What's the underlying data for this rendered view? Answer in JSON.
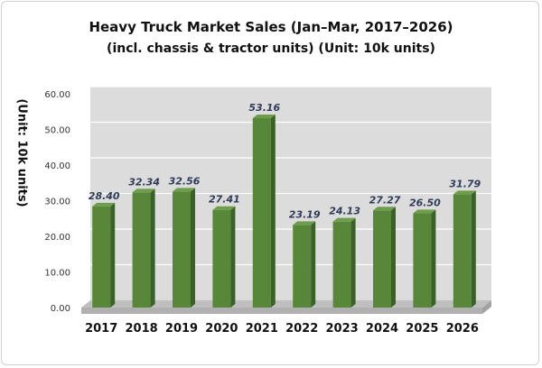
{
  "chart_data": {
    "type": "bar",
    "title": "Heavy Truck Market Sales (Jan–Mar, 2017–2026)",
    "subtitle": "(incl. chassis & tractor units) (Unit: 10k units)",
    "xlabel": "",
    "ylabel": "(Unit: 10k units)",
    "categories": [
      "2017",
      "2018",
      "2019",
      "2020",
      "2021",
      "2022",
      "2023",
      "2024",
      "2025",
      "2026"
    ],
    "values": [
      28.4,
      32.34,
      32.56,
      27.41,
      53.16,
      23.19,
      24.13,
      27.27,
      26.5,
      31.79
    ],
    "value_labels": [
      "28.40",
      "32.34",
      "32.56",
      "27.41",
      "53.16",
      "23.19",
      "24.13",
      "27.27",
      "26.50",
      "31.79"
    ],
    "ylim": [
      0,
      60
    ],
    "yticks": [
      "0.00",
      "10.00",
      "20.00",
      "30.00",
      "40.00",
      "50.00",
      "60.00"
    ],
    "grid": true,
    "legend": "none",
    "colors": {
      "bar_front": "#58873a",
      "bar_side": "#3a6126",
      "bar_top": "#6e9e4c",
      "plot_wall": "#dcdcdc",
      "plot_floor": "#bfbfbf",
      "gridline": "#ffffff",
      "value_label": "#2f3b57"
    }
  }
}
